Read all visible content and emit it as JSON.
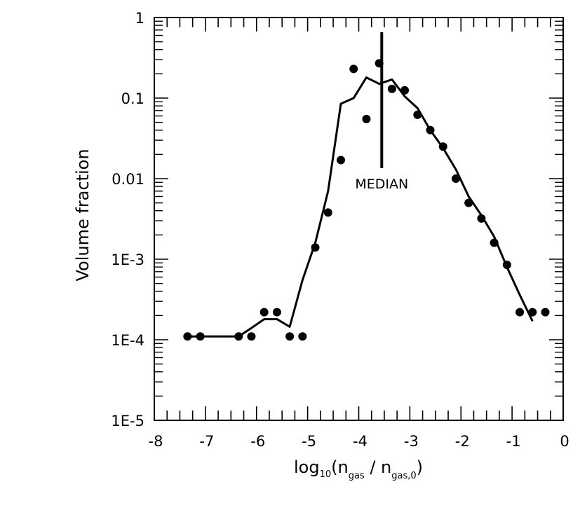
{
  "chart_data": {
    "type": "scatter",
    "title": "",
    "xlabel": {
      "main": "log",
      "sub": "10",
      "open": "(n",
      "sub1": "gas",
      "mid": " / n",
      "sub2": "gas,0",
      "close": ")"
    },
    "ylabel": "Volume fraction",
    "xlim": [
      -8,
      0
    ],
    "ylim_log10": [
      -5,
      0
    ],
    "yscale": "log",
    "x_tick_labels": [
      "-8",
      "-7",
      "-6",
      "-5",
      "-4",
      "-3",
      "-2",
      "-1",
      "0"
    ],
    "y_tick_labels": [
      "1E-5",
      "1E-4",
      "1E-3",
      "0.01",
      "0.1",
      "1"
    ],
    "annotation": {
      "text": "MEDIAN",
      "x": -3.55
    },
    "series": [
      {
        "name": "points",
        "kind": "scatter",
        "x": [
          -7.35,
          -7.1,
          -6.35,
          -6.1,
          -5.85,
          -5.6,
          -5.35,
          -5.1,
          -4.85,
          -4.6,
          -4.35,
          -4.1,
          -3.85,
          -3.6,
          -3.35,
          -3.1,
          -2.85,
          -2.6,
          -2.35,
          -2.1,
          -1.85,
          -1.6,
          -1.35,
          -1.1,
          -0.85,
          -0.6,
          -0.35
        ],
        "y": [
          0.00011,
          0.00011,
          0.00011,
          0.00011,
          0.00022,
          0.00022,
          0.00011,
          0.00011,
          0.0014,
          0.0038,
          0.017,
          0.23,
          0.055,
          0.27,
          0.13,
          0.125,
          0.062,
          0.04,
          0.025,
          0.01,
          0.005,
          0.0032,
          0.0016,
          0.00085,
          0.00022,
          0.00022,
          0.00022
        ]
      },
      {
        "name": "curve",
        "kind": "line",
        "x": [
          -7.35,
          -6.35,
          -6.1,
          -5.85,
          -5.6,
          -5.35,
          -5.1,
          -4.85,
          -4.6,
          -4.35,
          -4.1,
          -3.85,
          -3.6,
          -3.35,
          -3.1,
          -2.85,
          -2.6,
          -2.35,
          -2.1,
          -1.85,
          -1.6,
          -1.35,
          -1.1,
          -0.85,
          -0.6
        ],
        "y": [
          0.00011,
          0.00011,
          0.00014,
          0.00018,
          0.00018,
          0.000145,
          0.00055,
          0.0016,
          0.007,
          0.085,
          0.1,
          0.18,
          0.15,
          0.17,
          0.105,
          0.075,
          0.04,
          0.024,
          0.013,
          0.006,
          0.0035,
          0.0019,
          0.0008,
          0.00036,
          0.00017
        ]
      }
    ]
  }
}
